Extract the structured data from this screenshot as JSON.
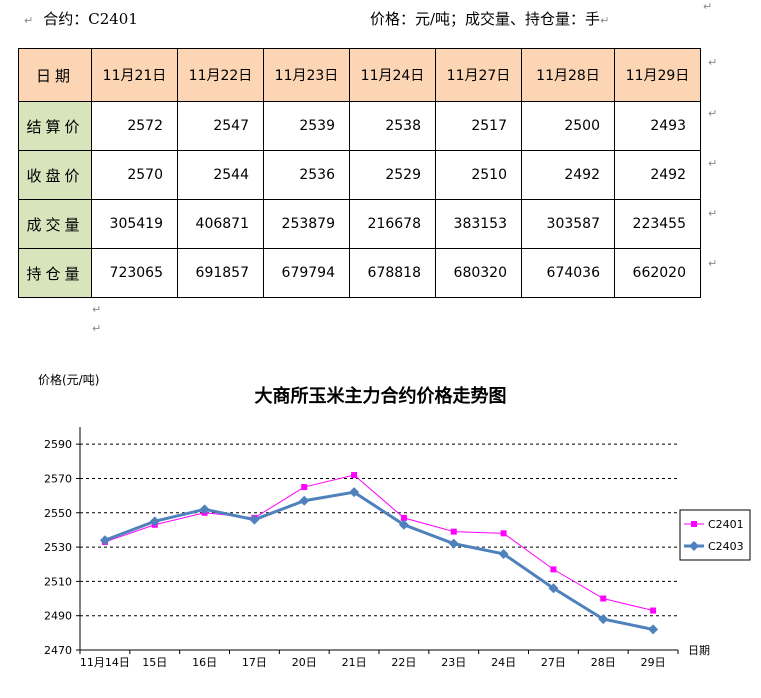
{
  "header": {
    "contract_label": "合约：C2401",
    "unit_label": "价格：元/吨；成交量、持仓量：手",
    "para_mark": "↵"
  },
  "table": {
    "corner": "日期",
    "dates": [
      "11月21日",
      "11月22日",
      "11月23日",
      "11月24日",
      "11月27日",
      "11月28日",
      "11月29日"
    ],
    "rows": [
      {
        "label": "结算价",
        "values": [
          "2572",
          "2547",
          "2539",
          "2538",
          "2517",
          "2500",
          "2493"
        ]
      },
      {
        "label": "收盘价",
        "values": [
          "2570",
          "2544",
          "2536",
          "2529",
          "2510",
          "2492",
          "2492"
        ]
      },
      {
        "label": "成交量",
        "values": [
          "305419",
          "406871",
          "253879",
          "216678",
          "383153",
          "303587",
          "223455"
        ]
      },
      {
        "label": "持仓量",
        "values": [
          "723065",
          "691857",
          "679794",
          "678818",
          "680320",
          "674036",
          "662020"
        ]
      }
    ]
  },
  "chart_data": {
    "type": "line",
    "title": "大商所玉米主力合约价格走势图",
    "ylabel": "价格(元/吨)",
    "xlabel": "日期",
    "categories": [
      "11月14日",
      "15日",
      "16日",
      "17日",
      "20日",
      "21日",
      "22日",
      "23日",
      "24日",
      "27日",
      "28日",
      "29日"
    ],
    "yticks": [
      2470,
      2490,
      2510,
      2530,
      2550,
      2570,
      2590
    ],
    "ylim": [
      2470,
      2600
    ],
    "grid": "horizontal dashed",
    "legend_position": "right",
    "series": [
      {
        "name": "C2401",
        "color": "#ff00ff",
        "marker": "square",
        "values": [
          2533,
          2543,
          2550,
          2547,
          2565,
          2572,
          2547,
          2539,
          2538,
          2517,
          2500,
          2493
        ]
      },
      {
        "name": "C2403",
        "color": "#4f81bd",
        "marker": "diamond",
        "values": [
          2534,
          2545,
          2552,
          2546,
          2557,
          2562,
          2543,
          2532,
          2526,
          2506,
          2488,
          2482
        ]
      }
    ]
  }
}
